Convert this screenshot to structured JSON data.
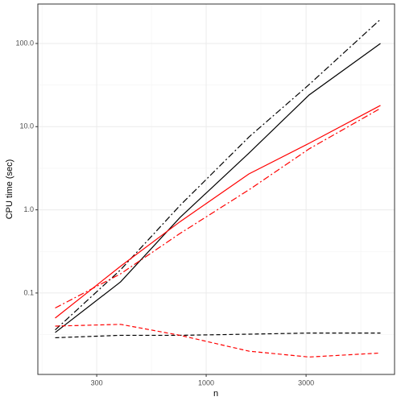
{
  "chart_data": {
    "type": "line",
    "xlabel": "n",
    "ylabel": "CPU time (sec)",
    "log_x": true,
    "log_y": true,
    "grid": true,
    "xlim": [
      157,
      7940
    ],
    "ylim": [
      0.0105,
      298
    ],
    "xticks": [
      {
        "value": 300,
        "label": "300"
      },
      {
        "value": 1000,
        "label": "1000"
      },
      {
        "value": 3000,
        "label": "3000"
      }
    ],
    "yticks": [
      {
        "value": 0.1,
        "label": "0.1"
      },
      {
        "value": 1,
        "label": "1.0"
      },
      {
        "value": 10,
        "label": "10.0"
      },
      {
        "value": 100,
        "label": "100.0"
      }
    ],
    "x": [
      190,
      390,
      750,
      1600,
      3100,
      6800
    ],
    "series": [
      {
        "color": "#000000",
        "linestyle": "solid",
        "values": [
          0.0335,
          0.136,
          0.81,
          4.8,
          24,
          100
        ]
      },
      {
        "color": "#000000",
        "linestyle": "dashdot",
        "values": [
          0.036,
          0.19,
          1.13,
          7.5,
          32,
          195
        ]
      },
      {
        "color": "#000000",
        "linestyle": "dashed",
        "values": [
          0.029,
          0.031,
          0.031,
          0.032,
          0.033,
          0.033
        ]
      },
      {
        "color": "#ff0000",
        "linestyle": "solid",
        "values": [
          0.05,
          0.21,
          0.72,
          2.7,
          6.3,
          18
        ]
      },
      {
        "color": "#ff0000",
        "linestyle": "dashdot",
        "values": [
          0.066,
          0.17,
          0.52,
          1.74,
          5.4,
          16.6
        ]
      },
      {
        "color": "#ff0000",
        "linestyle": "dashed",
        "values": [
          0.04,
          0.042,
          0.031,
          0.02,
          0.017,
          0.019
        ]
      }
    ]
  }
}
